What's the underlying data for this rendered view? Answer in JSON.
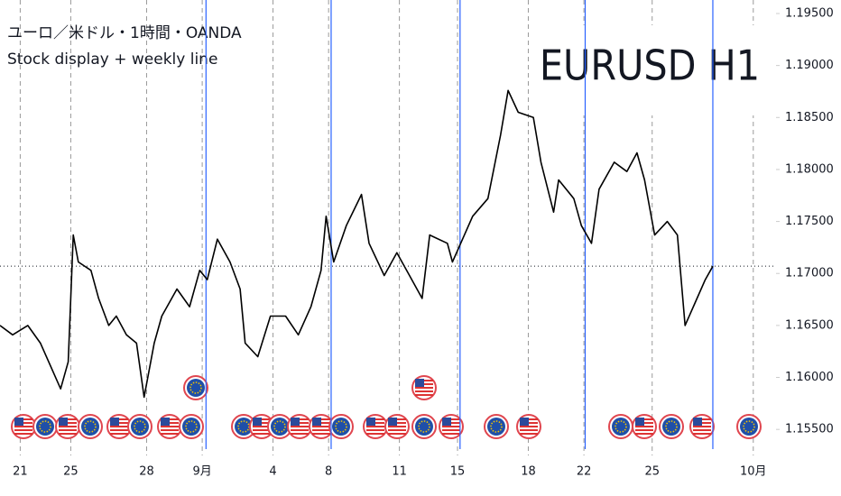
{
  "chart_data": {
    "type": "line",
    "title": "ユーロ／米ドル・1時間・OANDA",
    "subtitle": "Stock display + weekly line",
    "watermark": "EURUSD H1",
    "x": [
      -0.8,
      -0.3,
      0.3,
      0.8,
      1.2,
      1.6,
      1.9,
      2.1,
      2.3,
      2.8,
      3.1,
      3.5,
      3.8,
      4.2,
      4.6,
      4.9,
      5.3,
      5.6,
      6.2,
      6.7,
      7.1,
      7.4,
      7.8,
      8.3,
      8.7,
      8.9,
      9.4,
      9.9,
      10.5,
      11.0,
      11.5,
      11.9,
      12.1,
      12.4,
      12.9,
      13.5,
      13.8,
      14.4,
      14.9,
      15.4,
      15.9,
      16.2,
      16.9,
      17.1,
      17.5,
      17.9,
      18.5,
      19.0,
      19.3,
      19.7,
      20.3,
      20.6,
      21.1,
      21.3,
      21.9,
      22.2,
      22.6,
      22.9,
      23.5,
      24.0,
      24.4,
      24.7,
      25.1,
      25.6,
      26.0,
      26.3,
      26.7,
      27.1,
      27.4
    ],
    "series": [
      {
        "name": "EURUSD",
        "color": "#000000",
        "values": [
          1.165,
          1.1641,
          1.165,
          1.1633,
          1.1611,
          1.1589,
          1.1615,
          1.1737,
          1.1711,
          1.1703,
          1.1676,
          1.165,
          1.1659,
          1.1641,
          1.1633,
          1.1581,
          1.1633,
          1.1659,
          1.1685,
          1.1668,
          1.1703,
          1.1694,
          1.1733,
          1.1711,
          1.1685,
          1.1633,
          1.162,
          1.1659,
          1.1659,
          1.1641,
          1.1668,
          1.1703,
          1.1755,
          1.1711,
          1.1746,
          1.1776,
          1.1729,
          1.1698,
          1.172,
          1.1698,
          1.1676,
          1.1737,
          1.1729,
          1.1711,
          1.1733,
          1.1755,
          1.1772,
          1.1833,
          1.1876,
          1.1855,
          1.185,
          1.1807,
          1.1759,
          1.179,
          1.1772,
          1.1746,
          1.1729,
          1.1781,
          1.1807,
          1.1798,
          1.1816,
          1.179,
          1.1737,
          1.175,
          1.1737,
          1.165,
          1.1672,
          1.1694,
          1.1707
        ]
      }
    ],
    "week_lines": [
      7.35,
      12.3,
      17.4,
      22.35,
      27.4
    ],
    "week_line_color": "#2962ff",
    "xlim": [
      -0.8,
      29.9
    ],
    "xticks": [
      {
        "value": 0,
        "label": "21"
      },
      {
        "value": 2,
        "label": "25"
      },
      {
        "value": 5,
        "label": "28"
      },
      {
        "value": 7.2,
        "label": "9月"
      },
      {
        "value": 10,
        "label": "4"
      },
      {
        "value": 12.2,
        "label": "8"
      },
      {
        "value": 15,
        "label": "11"
      },
      {
        "value": 17.3,
        "label": "15"
      },
      {
        "value": 20.1,
        "label": "18"
      },
      {
        "value": 22.3,
        "label": "22"
      },
      {
        "value": 25,
        "label": "25"
      },
      {
        "value": 29,
        "label": "10月"
      }
    ],
    "ylim": [
      1.1525,
      1.1963
    ],
    "yticks": [
      {
        "value": 1.155,
        "label": "1.15500"
      },
      {
        "value": 1.16,
        "label": "1.16000"
      },
      {
        "value": 1.165,
        "label": "1.16500"
      },
      {
        "value": 1.17,
        "label": "1.17000"
      },
      {
        "value": 1.175,
        "label": "1.17500"
      },
      {
        "value": 1.18,
        "label": "1.18000"
      },
      {
        "value": 1.185,
        "label": "1.18500"
      },
      {
        "value": 1.19,
        "label": "1.19000"
      },
      {
        "value": 1.195,
        "label": "1.19500"
      }
    ],
    "grid": true
  }
}
